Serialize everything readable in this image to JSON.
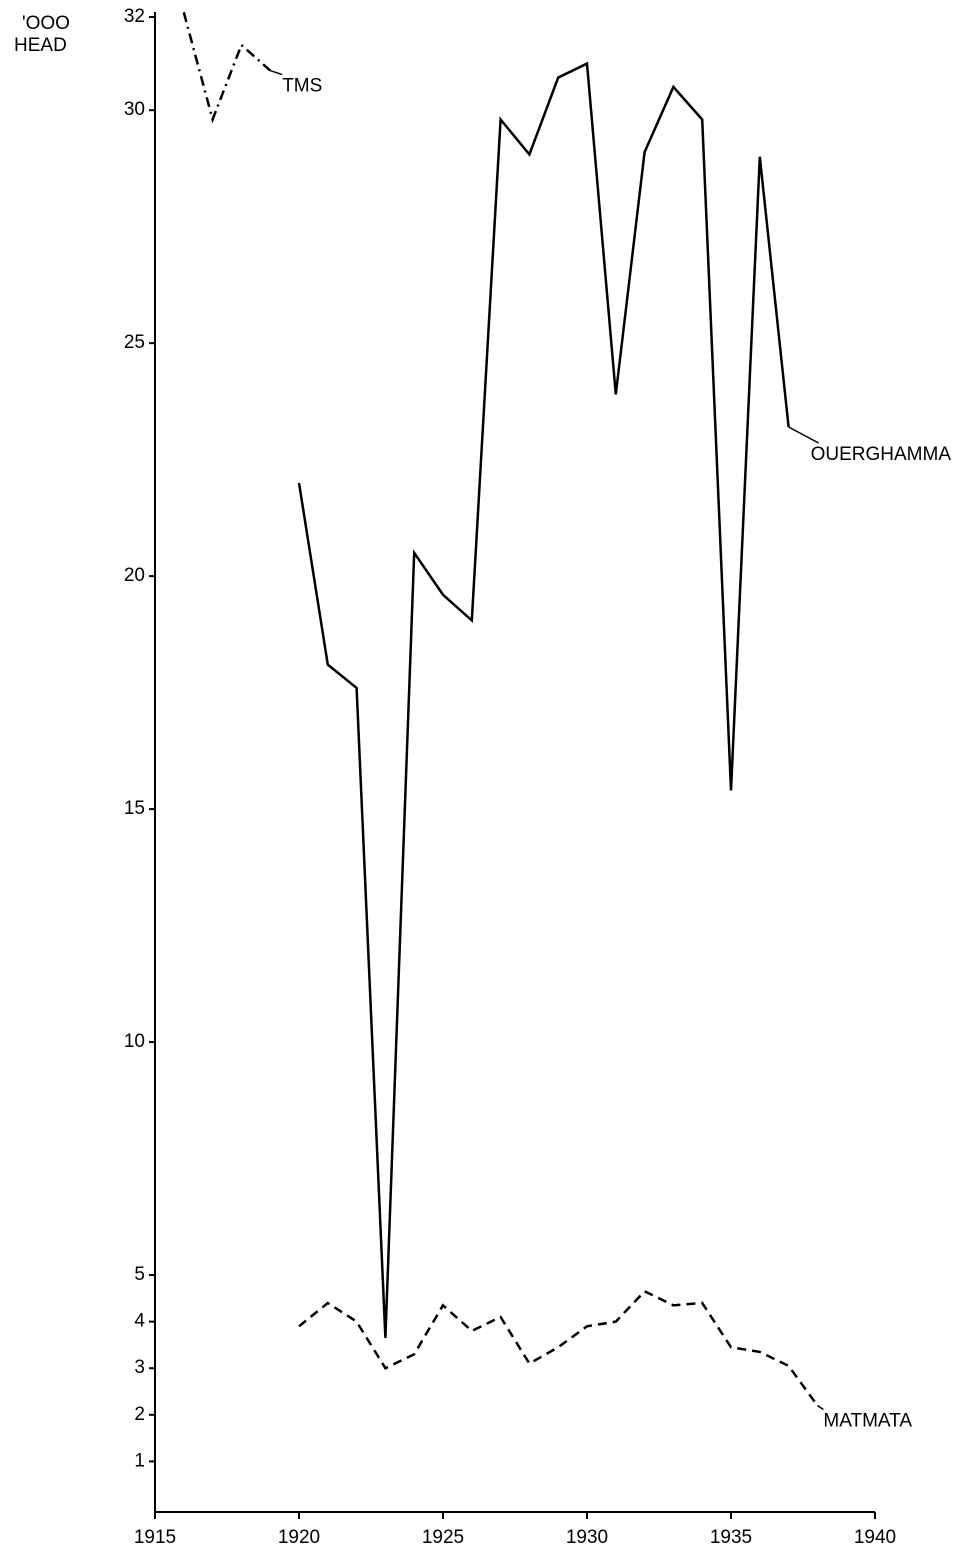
{
  "chart_data": {
    "type": "line",
    "y_label": [
      "'OOO",
      "HEAD"
    ],
    "xlim": [
      1915,
      1940
    ],
    "xticks": [
      1915,
      1920,
      1925,
      1930,
      1935,
      1940
    ],
    "ylim": [
      0,
      32
    ],
    "yticks": [
      1,
      2,
      3,
      4,
      5,
      10,
      15,
      20,
      25,
      30,
      32
    ],
    "grid": false,
    "series": [
      {
        "name": "TMS",
        "color": "#000000",
        "style": "dashdot",
        "x": [
          1916,
          1917,
          1918,
          1919
        ],
        "values": [
          32.1,
          29.8,
          31.4,
          30.85
        ]
      },
      {
        "name": "OUERGHAMMA",
        "color": "#000000",
        "style": "solid",
        "x": [
          1920,
          1921,
          1922,
          1923,
          1924,
          1925,
          1926,
          1927,
          1928,
          1929,
          1930,
          1931,
          1932,
          1933,
          1934,
          1935,
          1936,
          1937
        ],
        "values": [
          22,
          18.1,
          17.6,
          3.65,
          20.5,
          19.6,
          19.05,
          29.8,
          29.05,
          30.7,
          31.0,
          23.9,
          29.1,
          30.5,
          29.8,
          15.4,
          29.0,
          23.2
        ]
      },
      {
        "name": "MATMATA",
        "color": "#000000",
        "style": "dashed",
        "x": [
          1920,
          1921,
          1922,
          1923,
          1924,
          1925,
          1926,
          1927,
          1928,
          1929,
          1930,
          1931,
          1932,
          1933,
          1934,
          1935,
          1936,
          1937,
          1938
        ],
        "values": [
          3.9,
          4.4,
          4.0,
          3.0,
          3.3,
          4.35,
          3.8,
          4.1,
          3.1,
          3.45,
          3.9,
          4.0,
          4.65,
          4.35,
          4.4,
          3.45,
          3.35,
          3.05,
          2.2
        ]
      }
    ]
  }
}
